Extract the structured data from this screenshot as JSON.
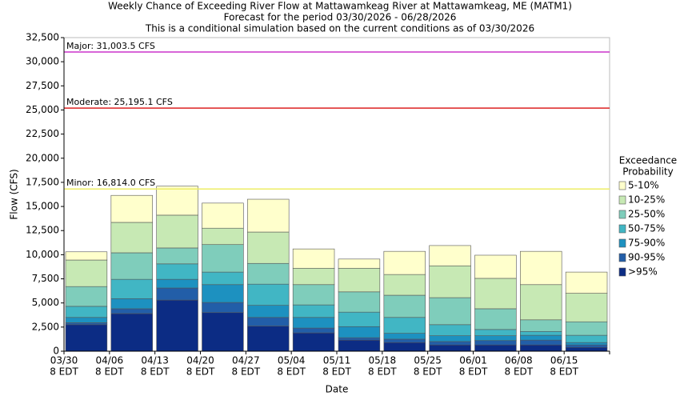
{
  "chart_data": {
    "type": "stacked_bar",
    "title": "Weekly Chance of Exceeding River Flow at Mattawamkeag River at Mattawamkeag, ME (MATM1)",
    "subtitle": [
      "Forecast for the period 03/30/2026 - 06/28/2026",
      "This is a conditional simulation based on the current conditions as of 03/30/2026"
    ],
    "y_label": "Flow (CFS)",
    "x_label": "Date",
    "categories": [
      "03/30",
      "04/06",
      "04/13",
      "04/20",
      "04/27",
      "05/04",
      "05/11",
      "05/18",
      "05/25",
      "06/01",
      "06/08",
      "06/15"
    ],
    "category_suffix": "8 EDT",
    "legend_title": [
      "Exceedance",
      "Probability"
    ],
    "series": [
      {
        "name": ">95%",
        "color": "#0c2c84",
        "values": [
          2750,
          3900,
          5300,
          4000,
          2600,
          1900,
          1150,
          900,
          650,
          650,
          650,
          400
        ]
      },
      {
        "name": "90-95%",
        "color": "#225ea8",
        "values": [
          200,
          500,
          1250,
          1050,
          900,
          500,
          250,
          350,
          350,
          450,
          500,
          250
        ]
      },
      {
        "name": "75-90%",
        "color": "#1d91c0",
        "values": [
          550,
          1050,
          900,
          1850,
          1250,
          1100,
          1150,
          600,
          600,
          500,
          500,
          250
        ]
      },
      {
        "name": "50-75%",
        "color": "#41b6c4",
        "values": [
          1150,
          2000,
          1600,
          1300,
          2200,
          1300,
          1500,
          1650,
          1150,
          650,
          400,
          750
        ]
      },
      {
        "name": "25-50%",
        "color": "#7fcdbb",
        "values": [
          2050,
          2750,
          1650,
          2850,
          2150,
          2100,
          2100,
          2300,
          2800,
          2150,
          1200,
          1400
        ]
      },
      {
        "name": "10-25%",
        "color": "#c7e9b4",
        "values": [
          2750,
          3150,
          3400,
          1700,
          3250,
          1700,
          2450,
          2150,
          3300,
          3150,
          3650,
          2950
        ]
      },
      {
        "name": "5-10%",
        "color": "#ffffcc",
        "values": [
          850,
          2800,
          3000,
          2600,
          3400,
          2000,
          950,
          2400,
          2100,
          2400,
          3450,
          2200
        ]
      }
    ],
    "thresholds": [
      {
        "label": "Major: 31,003.5 CFS",
        "value": 31003.5,
        "color": "#cc33cc"
      },
      {
        "label": "Moderate: 25,195.1 CFS",
        "value": 25195.1,
        "color": "#dd2222"
      },
      {
        "label": "Minor: 16,814.0 CFS",
        "value": 16814.0,
        "color": "#eeee66"
      }
    ],
    "ylim": [
      0,
      32500
    ],
    "yticks": [
      0,
      {
        "value": 2500,
        "label": "2,500"
      },
      {
        "value": 5000,
        "label": "5,000"
      },
      {
        "value": 7500,
        "label": "7,500"
      },
      {
        "value": 10000,
        "label": "10,000"
      },
      {
        "value": 12500,
        "label": "12,500"
      },
      {
        "value": 15000,
        "label": "15,000"
      },
      {
        "value": 17500,
        "label": "17,500"
      },
      {
        "value": 20000,
        "label": "20,000"
      },
      {
        "value": 22500,
        "label": "22,500"
      },
      {
        "value": 25000,
        "label": "25,000"
      },
      {
        "value": 27500,
        "label": "27,500"
      },
      {
        "value": 30000,
        "label": "30,000"
      },
      {
        "value": 32500,
        "label": "32,500"
      }
    ],
    "grid": false
  }
}
